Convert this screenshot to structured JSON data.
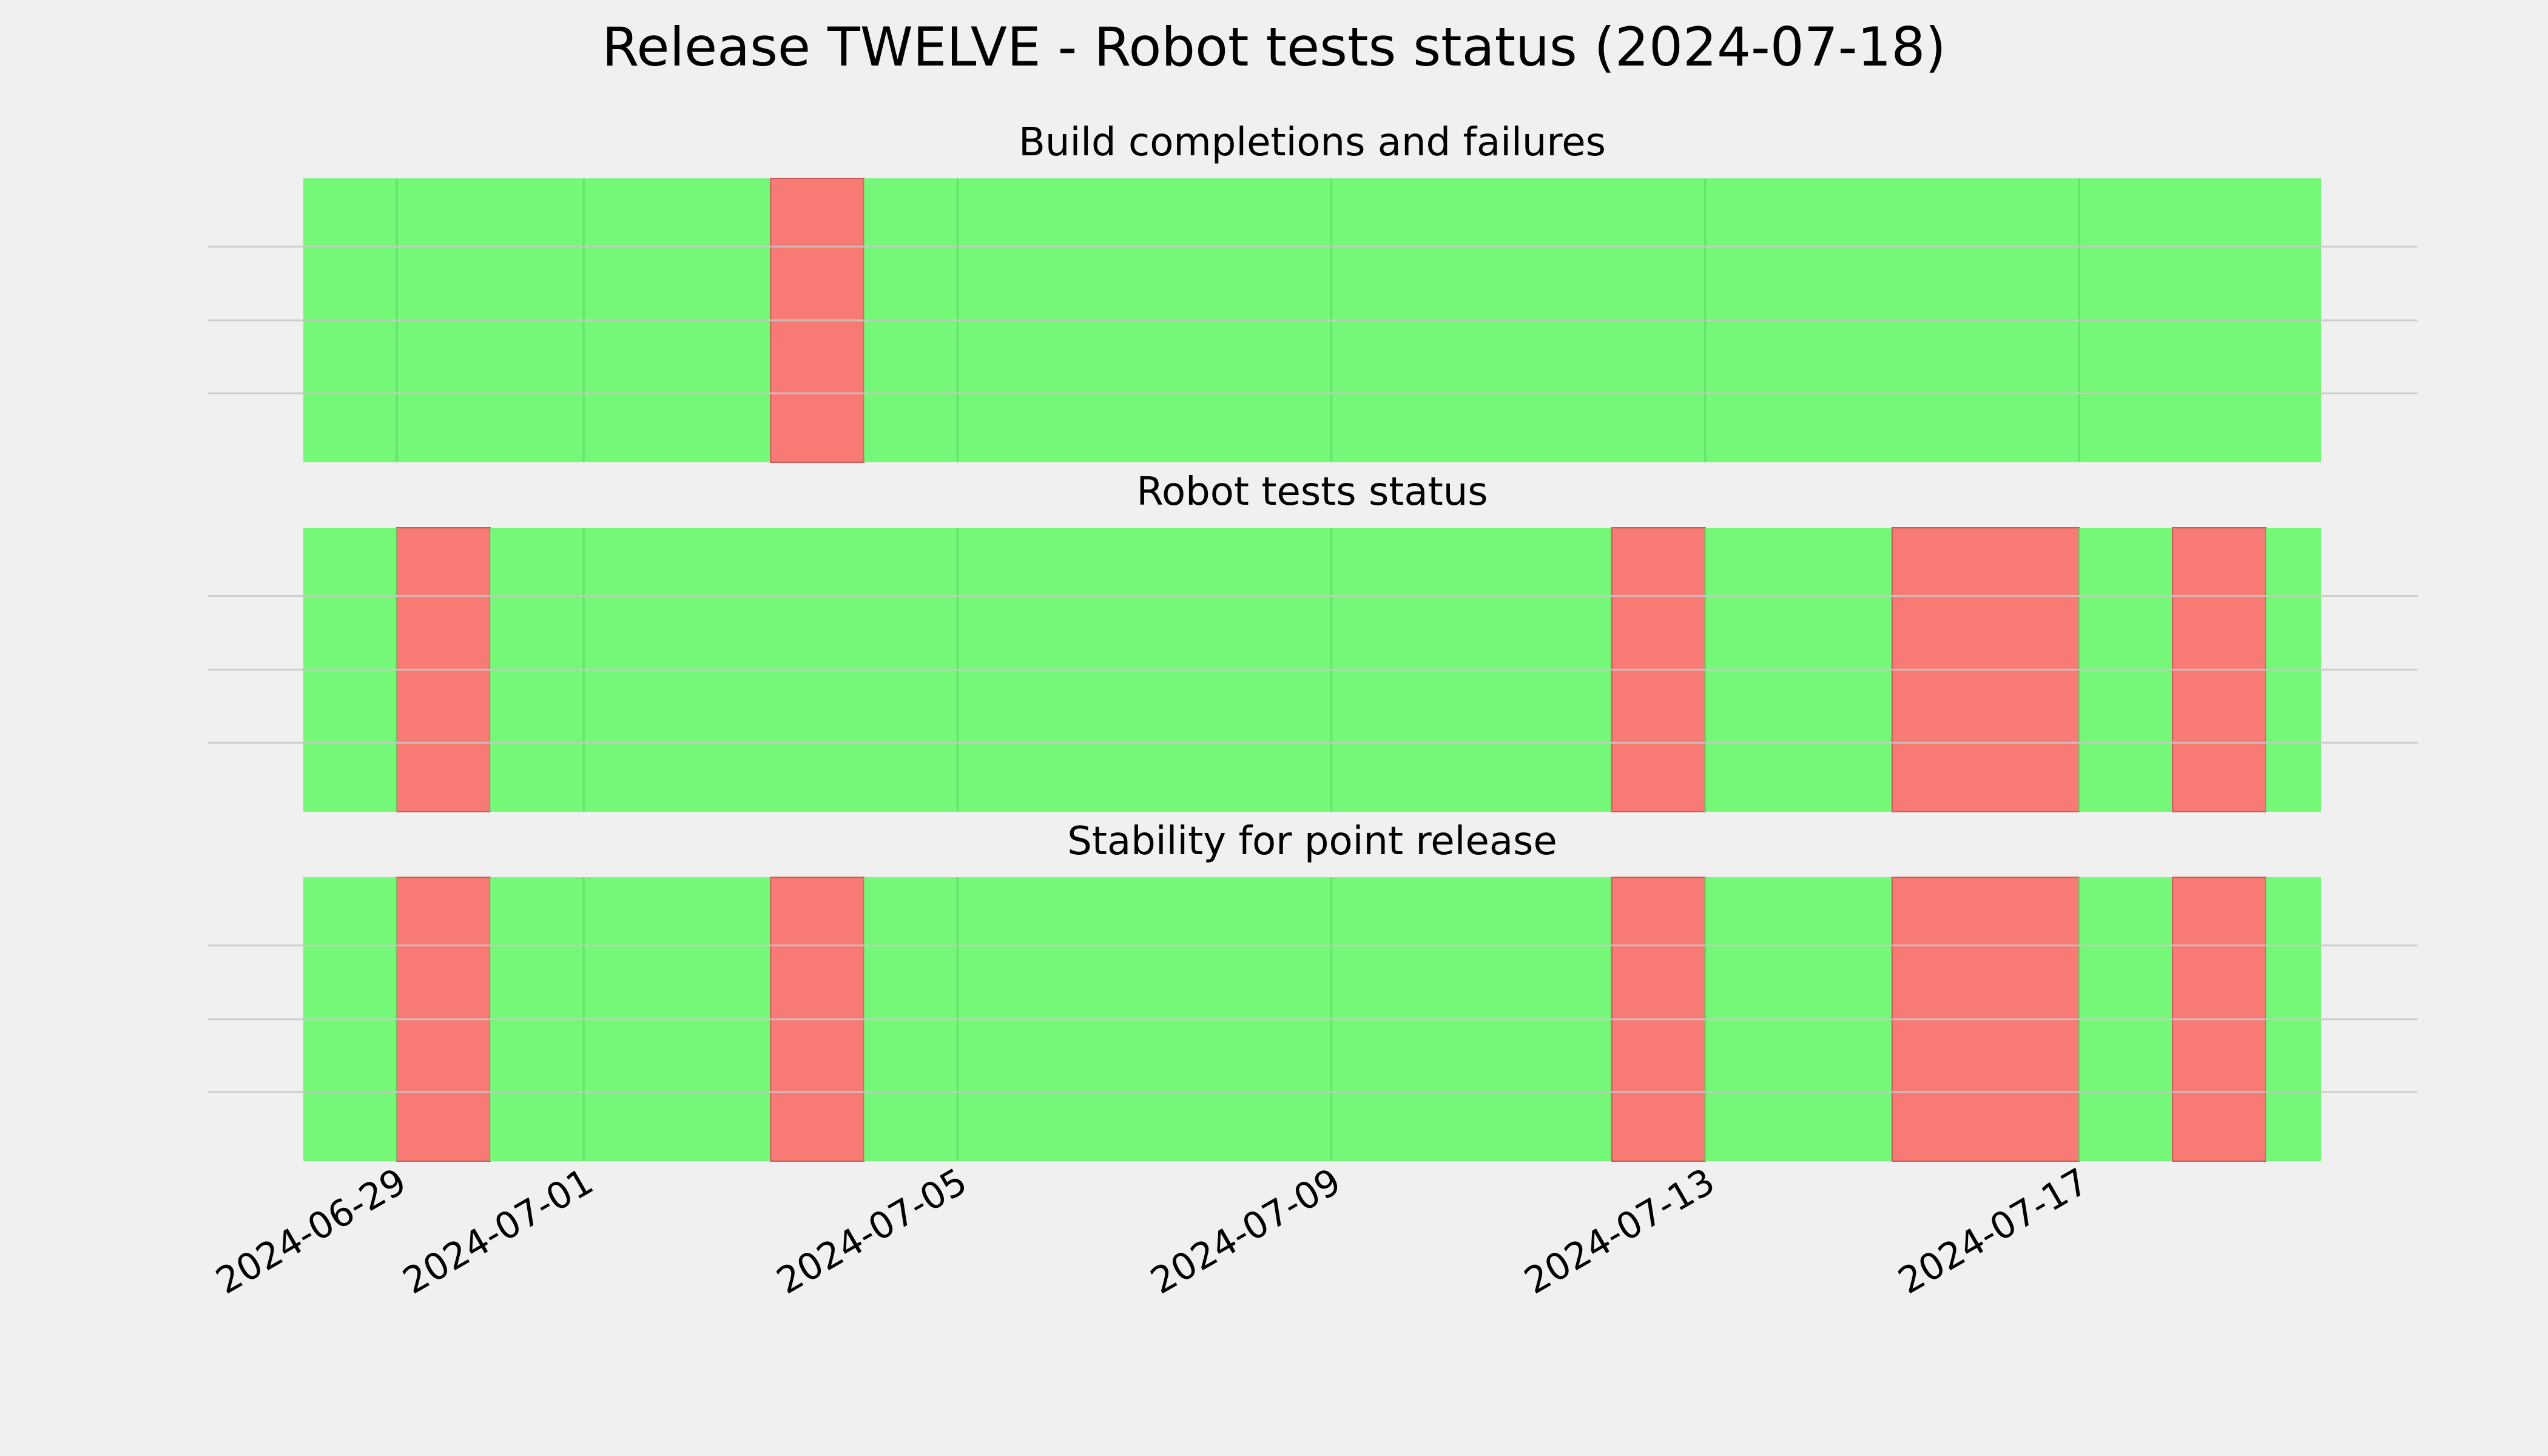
{
  "figure": {
    "title": "Release TWELVE - Robot tests status (2024-07-18)"
  },
  "colors": {
    "background": "#f0f0f0",
    "pass": "#75f777",
    "fail": "#f77a75",
    "grid": "#c8c8c8",
    "vgrid": "#5fd565"
  },
  "chart_data": [
    {
      "type": "timeline",
      "title": "Build completions and failures",
      "x_range": [
        "2024-06-28",
        "2024-07-19"
      ],
      "grid": true,
      "x_tick_labels": [
        "2024-06-29",
        "2024-07-01",
        "2024-07-05",
        "2024-07-09",
        "2024-07-13",
        "2024-07-17"
      ],
      "segments": [
        {
          "start": "2024-06-28",
          "end": "2024-07-03",
          "status": "pass"
        },
        {
          "start": "2024-07-03",
          "end": "2024-07-04",
          "status": "fail"
        },
        {
          "start": "2024-07-04",
          "end": "2024-07-19",
          "status": "pass"
        }
      ]
    },
    {
      "type": "timeline",
      "title": "Robot tests status",
      "x_range": [
        "2024-06-28",
        "2024-07-19"
      ],
      "grid": true,
      "x_tick_labels": [
        "2024-06-29",
        "2024-07-01",
        "2024-07-05",
        "2024-07-09",
        "2024-07-13",
        "2024-07-17"
      ],
      "segments": [
        {
          "start": "2024-06-28",
          "end": "2024-06-29",
          "status": "pass"
        },
        {
          "start": "2024-06-29",
          "end": "2024-06-30",
          "status": "fail"
        },
        {
          "start": "2024-06-30",
          "end": "2024-07-12",
          "status": "pass"
        },
        {
          "start": "2024-07-12",
          "end": "2024-07-13",
          "status": "fail"
        },
        {
          "start": "2024-07-13",
          "end": "2024-07-15",
          "status": "pass"
        },
        {
          "start": "2024-07-15",
          "end": "2024-07-17",
          "status": "fail"
        },
        {
          "start": "2024-07-17",
          "end": "2024-07-18",
          "status": "pass"
        },
        {
          "start": "2024-07-18",
          "end": "2024-07-19",
          "status": "fail"
        },
        {
          "start": "2024-07-19",
          "end": "2024-07-19",
          "status": "pass"
        }
      ]
    },
    {
      "type": "timeline",
      "title": "Stability for point release",
      "x_range": [
        "2024-06-28",
        "2024-07-19"
      ],
      "grid": true,
      "x_tick_labels": [
        "2024-06-29",
        "2024-07-01",
        "2024-07-05",
        "2024-07-09",
        "2024-07-13",
        "2024-07-17"
      ],
      "segments": [
        {
          "start": "2024-06-28",
          "end": "2024-06-29",
          "status": "pass"
        },
        {
          "start": "2024-06-29",
          "end": "2024-06-30",
          "status": "fail"
        },
        {
          "start": "2024-06-30",
          "end": "2024-07-03",
          "status": "pass"
        },
        {
          "start": "2024-07-03",
          "end": "2024-07-04",
          "status": "fail"
        },
        {
          "start": "2024-07-04",
          "end": "2024-07-12",
          "status": "pass"
        },
        {
          "start": "2024-07-12",
          "end": "2024-07-13",
          "status": "fail"
        },
        {
          "start": "2024-07-13",
          "end": "2024-07-15",
          "status": "pass"
        },
        {
          "start": "2024-07-15",
          "end": "2024-07-17",
          "status": "fail"
        },
        {
          "start": "2024-07-17",
          "end": "2024-07-18",
          "status": "pass"
        },
        {
          "start": "2024-07-18",
          "end": "2024-07-19",
          "status": "fail"
        },
        {
          "start": "2024-07-19",
          "end": "2024-07-19",
          "status": "pass"
        }
      ]
    }
  ]
}
